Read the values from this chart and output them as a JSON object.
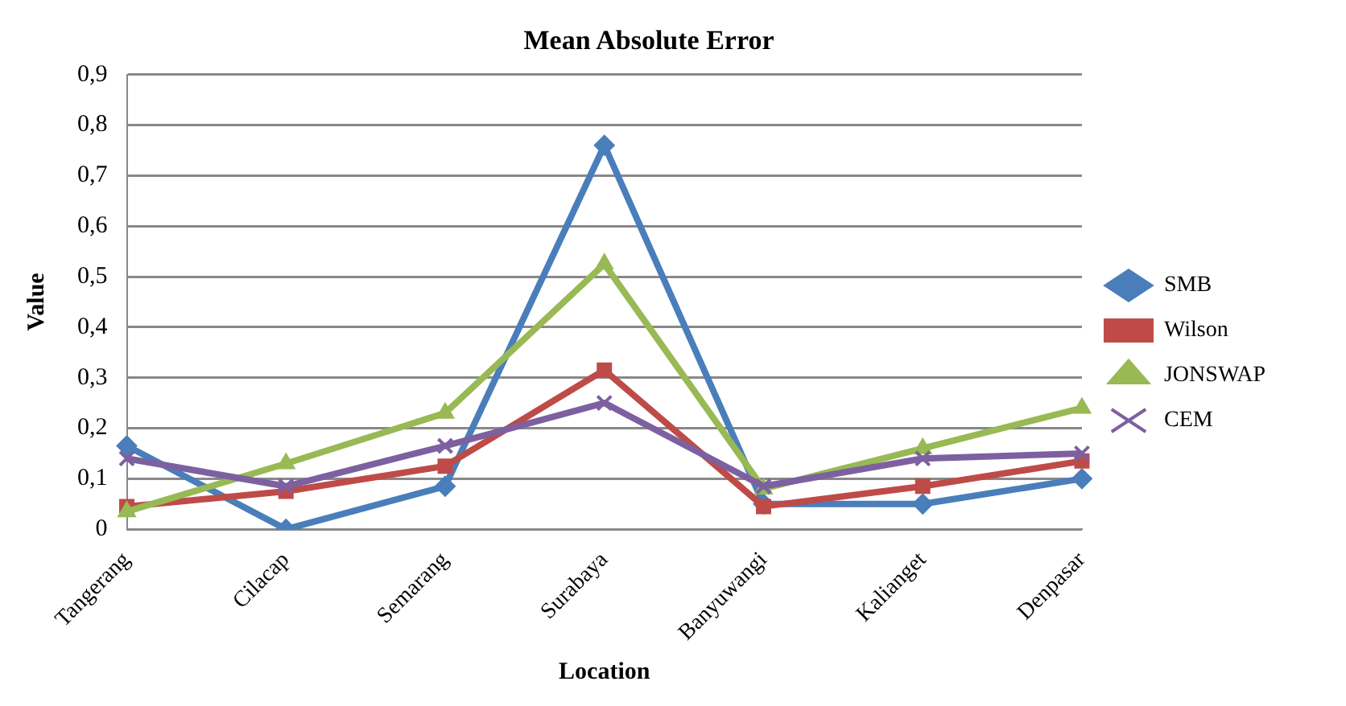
{
  "chart_data": {
    "type": "line",
    "title": "Mean Absolute Error",
    "xlabel": "Location",
    "ylabel": "Value",
    "categories": [
      "Tangerang",
      "Cilacap",
      "Semarang",
      "Surabaya",
      "Banyuwangi",
      "Kalianget",
      "Denpasar"
    ],
    "series": [
      {
        "name": "SMB",
        "color": "#4a7ebb",
        "marker": "diamond",
        "values": [
          0.165,
          0,
          0.085,
          0.76,
          0.05,
          0.05,
          0.1
        ]
      },
      {
        "name": "Wilson",
        "color": "#be4b48",
        "marker": "square",
        "values": [
          0.045,
          0.075,
          0.125,
          0.315,
          0.045,
          0.085,
          0.135
        ]
      },
      {
        "name": "JONSWAP",
        "color": "#98b954",
        "marker": "triangle",
        "values": [
          0.035,
          0.13,
          0.23,
          0.525,
          0.08,
          0.16,
          0.24
        ]
      },
      {
        "name": "CEM",
        "color": "#7d60a0",
        "marker": "cross",
        "values": [
          0.14,
          0.085,
          0.165,
          0.25,
          0.085,
          0.14,
          0.15
        ]
      }
    ],
    "ylim": [
      0,
      0.9
    ],
    "yticks": [
      0,
      {
        "value": 0.1,
        "label": "0,1"
      },
      {
        "value": 0.2,
        "label": "0,2"
      },
      {
        "value": 0.3,
        "label": "0,3"
      },
      {
        "value": 0.4,
        "label": "0,4"
      },
      {
        "value": 0.5,
        "label": "0,5"
      },
      {
        "value": 0.6,
        "label": "0,6"
      },
      {
        "value": 0.7,
        "label": "0,7"
      },
      {
        "value": 0.8,
        "label": "0,8"
      },
      {
        "value": 0.9,
        "label": "0,9"
      }
    ],
    "grid": "y",
    "legend": "right",
    "line_style": "solid"
  }
}
